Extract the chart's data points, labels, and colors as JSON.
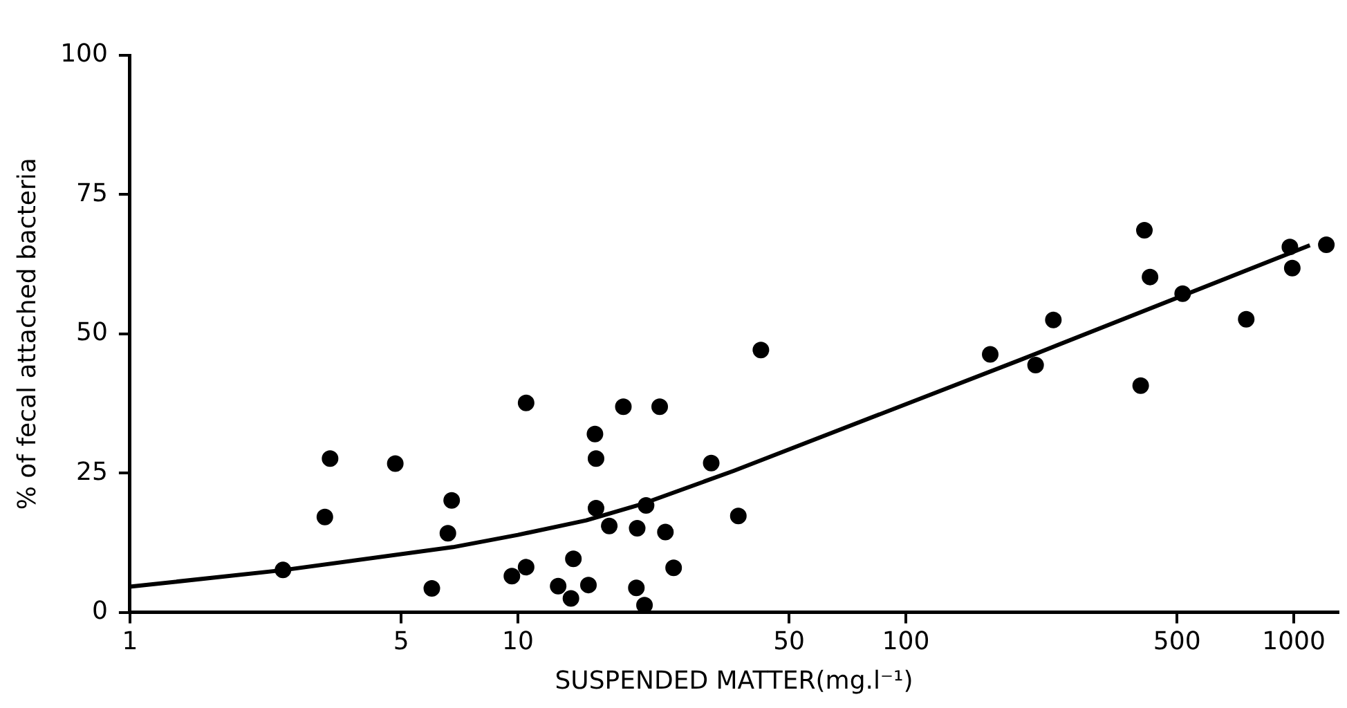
{
  "chart_data": {
    "type": "scatter",
    "xlabel": "SUSPENDED MATTER(mg.l⁻¹)",
    "ylabel": "% of fecal attached bacteria",
    "log": "x",
    "xlim": [
      1,
      1300
    ],
    "xticks": [
      1,
      5,
      10,
      50,
      100,
      500,
      1000
    ],
    "ylim": [
      0,
      100
    ],
    "yticks": [
      0,
      25,
      50,
      75,
      100
    ],
    "grid": false,
    "legend": false,
    "marker": "circle",
    "series": [
      {
        "color": "#000000",
        "x": [
          2.48,
          3.28,
          3.18,
          4.83,
          6.0,
          6.75,
          6.6,
          10.5,
          9.65,
          10.5,
          12.7,
          13.7,
          13.9,
          15.2,
          15.8,
          15.9,
          15.9,
          17.2,
          18.7,
          23.2,
          20.3,
          21.4,
          20.2,
          21.2,
          24,
          25.2,
          31.5,
          37,
          42.3,
          165,
          216,
          240,
          403,
          412,
          426,
          517,
          754,
          977,
          991,
          1213
        ],
        "values": [
          7.6,
          27.6,
          17.1,
          26.7,
          4.3,
          20.1,
          14.2,
          37.6,
          6.5,
          8.1,
          4.7,
          2.5,
          9.6,
          4.9,
          32,
          27.6,
          18.7,
          15.5,
          36.9,
          36.9,
          15.1,
          19.2,
          4.4,
          1.3,
          14.4,
          8.0,
          26.8,
          17.3,
          47.1,
          46.3,
          44.4,
          52.5,
          40.7,
          68.6,
          60.2,
          57.2,
          52.6,
          65.6,
          61.8,
          66
        ]
      },
      {
        "type": "line",
        "color": "#000000",
        "marker": "none",
        "x": [
          1,
          2.5,
          6.8,
          10,
          15,
          21,
          36,
          197,
          1100
        ],
        "values": [
          4.6,
          7.6,
          11.7,
          13.9,
          16.5,
          19.5,
          25.4,
          45.3,
          65.9
        ]
      }
    ]
  }
}
